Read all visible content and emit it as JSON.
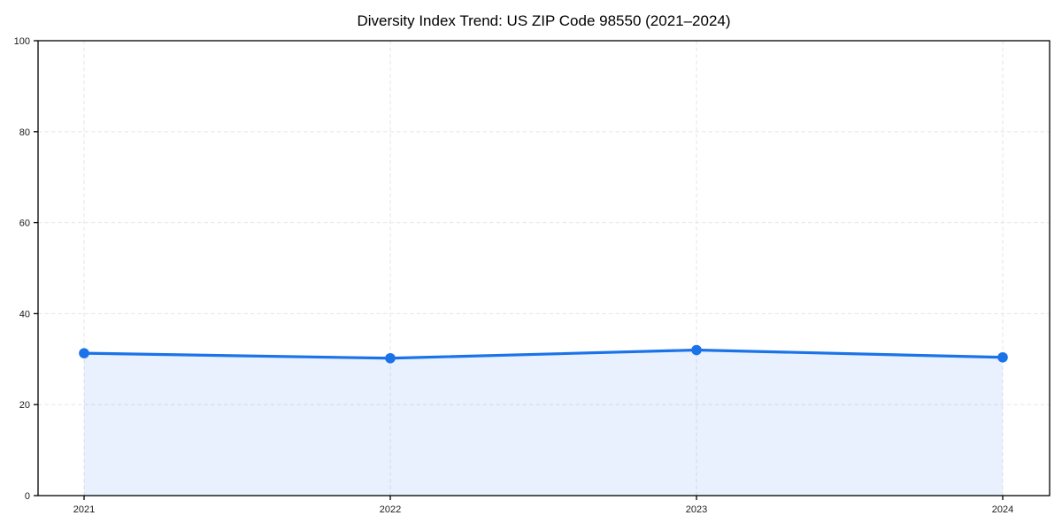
{
  "chart_data": {
    "type": "area",
    "title": "Diversity Index Trend: US ZIP Code 98550 (2021–2024)",
    "categories": [
      "2021",
      "2022",
      "2023",
      "2024"
    ],
    "series": [
      {
        "name": "Diversity Index",
        "values": [
          31.3,
          30.2,
          32.0,
          30.4
        ]
      }
    ],
    "xlabel": "",
    "ylabel": "",
    "ylim": [
      0,
      100
    ],
    "yticks": [
      0,
      20,
      40,
      60,
      80,
      100
    ],
    "grid": true,
    "grid_style": "dashed",
    "legend_position": "none",
    "marker": "circle",
    "colors": {
      "line": "#1a73e8",
      "marker": "#1a73e8",
      "fill": "rgba(26,115,232,0.10)",
      "gridline": "#e8e8e8",
      "spine": "#000000",
      "background": "#ffffff",
      "tick_label": "#1a1a1a",
      "title": "#000000"
    }
  }
}
